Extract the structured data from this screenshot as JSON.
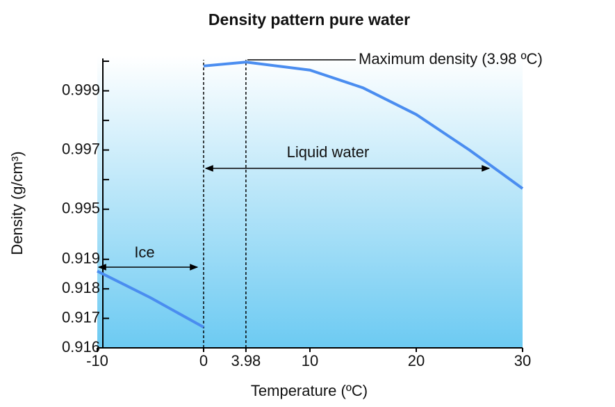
{
  "chart_data": {
    "type": "line",
    "title": "Density pattern pure water",
    "xlabel": "Temperature (ºC)",
    "ylabel": "Density (g/cm³)",
    "xlim": [
      -10,
      30
    ],
    "xticks": [
      -10,
      0,
      3.98,
      10,
      20,
      30
    ],
    "y_segments": [
      {
        "ylim": [
          0.916,
          0.9193
        ],
        "yticks": [
          0.916,
          0.917,
          0.918,
          0.919
        ]
      },
      {
        "ylim": [
          0.9945,
          1.0
        ],
        "yticks": [
          0.995,
          0.997,
          0.999
        ],
        "minor_yticks": [
          0.996,
          0.998,
          1.0
        ]
      }
    ],
    "series": [
      {
        "color": "#4a8df0",
        "x": [
          -10,
          -5,
          0
        ],
        "values": [
          0.9186,
          0.9177,
          0.9167
        ]
      },
      {
        "color": "#4a8df0",
        "x": [
          0,
          4,
          10,
          15,
          20,
          25,
          30
        ],
        "values": [
          0.99984,
          0.99997,
          0.9997,
          0.9991,
          0.9982,
          0.997,
          0.9957
        ]
      }
    ],
    "reference_lines": [
      0,
      3.98
    ],
    "annotations": [
      "Maximum density (3.98 ºC)",
      "Liquid water",
      "Ice"
    ]
  }
}
